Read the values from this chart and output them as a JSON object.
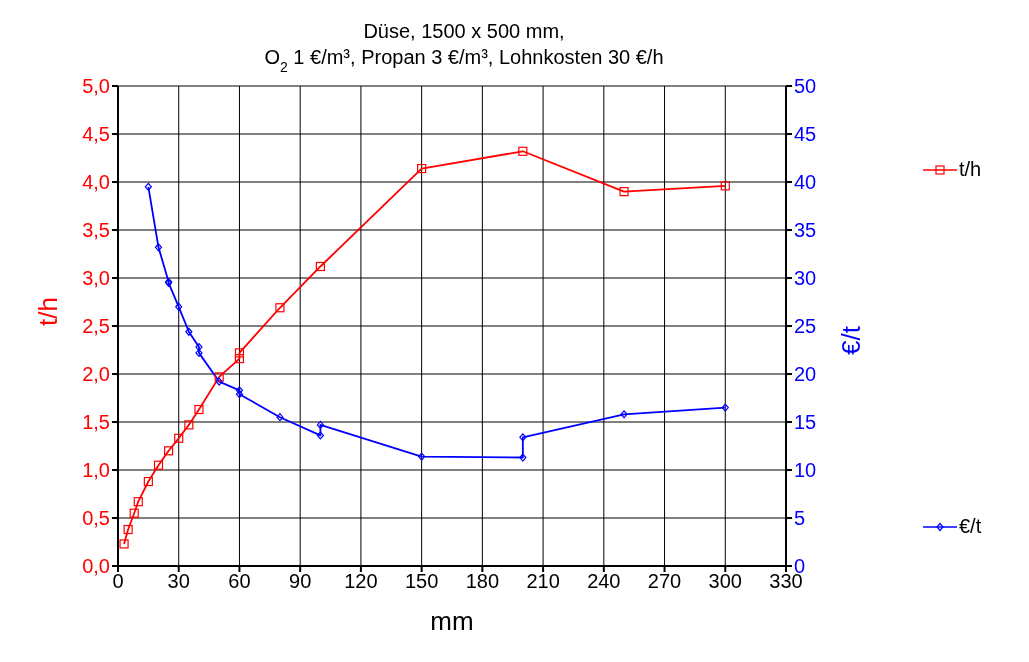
{
  "chart_data": {
    "type": "line",
    "title": "Düse, 1500 x 500 mm,\nO$_{2}$ 1 €/m³, Propan 3 €/m³, Lohnkosten 30 €/h",
    "xlabel": "mm",
    "ylabel": "t/h",
    "y2label": "€/t",
    "xlim": [
      0,
      330
    ],
    "xticks": [
      0,
      30,
      60,
      90,
      120,
      150,
      180,
      210,
      240,
      270,
      300,
      330
    ],
    "ylim": [
      0,
      5
    ],
    "yticks": [
      {
        "value": 0,
        "label": "0,0"
      },
      {
        "value": 0.5,
        "label": "0,5"
      },
      {
        "value": 1,
        "label": "1,0"
      },
      {
        "value": 1.5,
        "label": "1,5"
      },
      {
        "value": 2,
        "label": "2,0"
      },
      {
        "value": 2.5,
        "label": "2,5"
      },
      {
        "value": 3,
        "label": "3,0"
      },
      {
        "value": 3.5,
        "label": "3,5"
      },
      {
        "value": 4,
        "label": "4,0"
      },
      {
        "value": 4.5,
        "label": "4,5"
      },
      {
        "value": 5,
        "label": "5,0"
      }
    ],
    "y2lim": [
      0,
      50
    ],
    "y2ticks": [
      0,
      5,
      10,
      15,
      20,
      25,
      30,
      35,
      40,
      45,
      50
    ],
    "grid": true,
    "legend": "right",
    "line_style": "solid",
    "series": [
      {
        "name": "t/h",
        "color": "#ff0000",
        "marker": "square",
        "x": [
          3,
          5,
          8,
          10,
          15,
          20,
          25,
          30,
          35,
          40,
          50,
          60,
          60,
          80,
          100,
          150,
          200,
          250,
          300
        ],
        "values": [
          0.23,
          0.38,
          0.55,
          0.67,
          0.88,
          1.05,
          1.2,
          1.33,
          1.47,
          1.63,
          1.97,
          2.16,
          2.22,
          2.69,
          3.12,
          4.14,
          4.32,
          3.9,
          3.96
        ]
      },
      {
        "name": "€/t",
        "color": "#0000ff",
        "marker": "diamond",
        "axis": "y2",
        "x": [
          15,
          20,
          25,
          25,
          30,
          35,
          40,
          40,
          50,
          60,
          60,
          80,
          100,
          100,
          150,
          200,
          200,
          250,
          300
        ],
        "values": [
          39.5,
          33.2,
          29.6,
          29.5,
          27,
          24.4,
          22.8,
          22.2,
          19.2,
          18.3,
          17.9,
          15.5,
          13.6,
          14.7,
          11.4,
          11.3,
          13.4,
          15.8,
          16.5
        ]
      }
    ]
  }
}
